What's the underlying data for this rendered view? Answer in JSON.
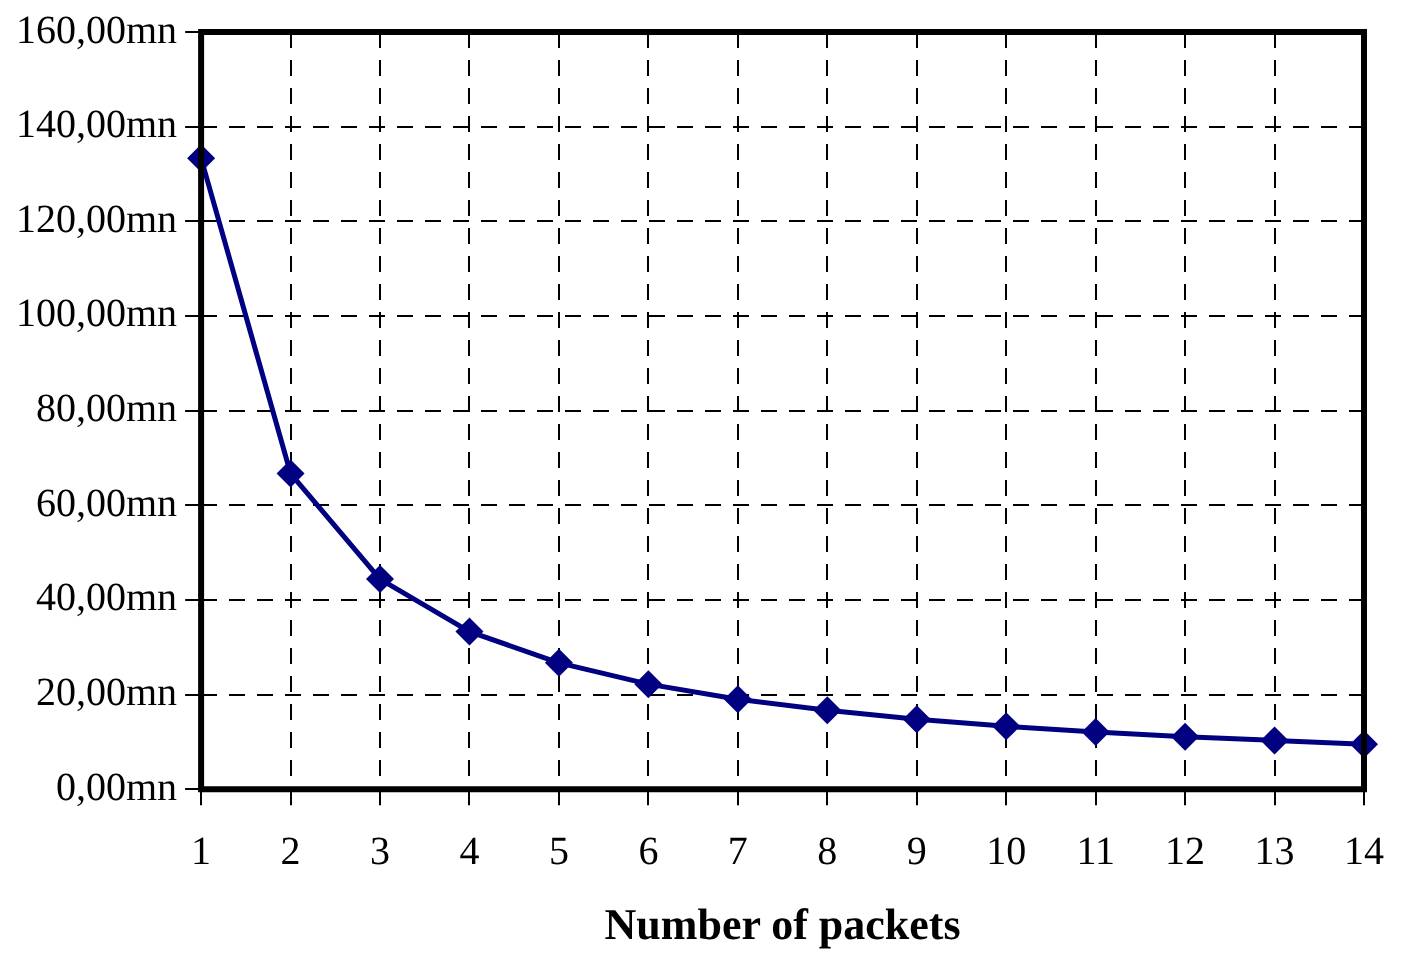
{
  "chart_data": {
    "type": "line",
    "xlabel": "Number of packets",
    "x": [
      1,
      2,
      3,
      4,
      5,
      6,
      7,
      8,
      9,
      10,
      11,
      12,
      13,
      14
    ],
    "series": [
      {
        "color": "#000080",
        "values": [
          133.3,
          66.7,
          44.4,
          33.3,
          26.7,
          22.2,
          19,
          16.7,
          14.8,
          13.3,
          12.1,
          11.1,
          10.3,
          9.5
        ]
      }
    ],
    "xlim": [
      1,
      14
    ],
    "xticks": [
      1,
      2,
      3,
      4,
      5,
      6,
      7,
      8,
      9,
      10,
      11,
      12,
      13,
      14
    ],
    "ylim": [
      0,
      160
    ],
    "yticks": [
      {
        "value": 0,
        "label": "0,00mn"
      },
      {
        "value": 20,
        "label": "20,00mn"
      },
      {
        "value": 40,
        "label": "40,00mn"
      },
      {
        "value": 60,
        "label": "60,00mn"
      },
      {
        "value": 80,
        "label": "80,00mn"
      },
      {
        "value": 100,
        "label": "100,00mn"
      },
      {
        "value": 120,
        "label": "120,00mn"
      },
      {
        "value": 140,
        "label": "140,00mn"
      },
      {
        "value": 160,
        "label": "160,00mn"
      }
    ],
    "grid": true,
    "legend": false,
    "marker": "diamond",
    "line_style": "solid"
  }
}
